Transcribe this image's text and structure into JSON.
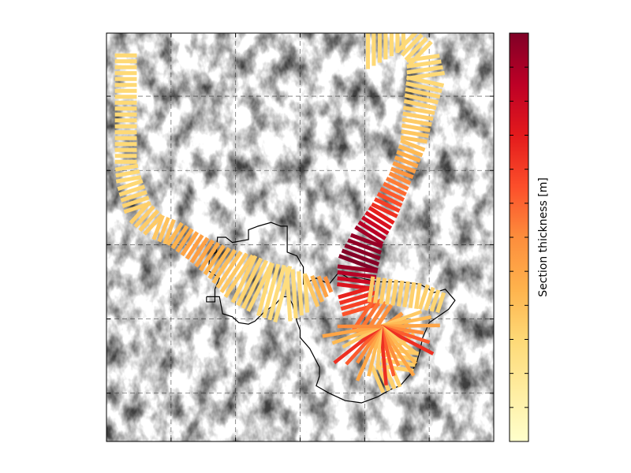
{
  "chart_data": {
    "type": "line",
    "title": "",
    "xlabel": "",
    "ylabel": "",
    "grid": true,
    "grid_style": "dashed",
    "xlim": [
      0,
      6
    ],
    "ylim": [
      0,
      5.5
    ],
    "x_gridlines": [
      1,
      2,
      3,
      4,
      5
    ],
    "y_gridlines": [
      0.65,
      1.65,
      2.65,
      3.65,
      4.65
    ],
    "colorbar": {
      "label": "Section thickness [m]",
      "colormap": "YlOrRd",
      "position": "right",
      "ticks": 12,
      "colors": [
        "#ffffcc",
        "#ffeda0",
        "#fed976",
        "#feb24c",
        "#fd8d3c",
        "#fc4e2a",
        "#e31a1c",
        "#bd0026",
        "#800026"
      ]
    },
    "background": "hillshade",
    "series": [
      {
        "kind": "flowline-sections",
        "line": [
          [
            0.3,
            5.2
          ],
          [
            0.3,
            4.6
          ],
          [
            0.3,
            4.1
          ],
          [
            0.3,
            3.75
          ],
          [
            0.35,
            3.5
          ],
          [
            0.5,
            3.1
          ],
          [
            0.75,
            2.9
          ],
          [
            1.05,
            2.8
          ],
          [
            1.4,
            2.6
          ],
          [
            1.75,
            2.4
          ],
          [
            2.1,
            2.2
          ],
          [
            2.45,
            2.05
          ],
          [
            2.75,
            1.98
          ],
          [
            3.1,
            2.0
          ],
          [
            3.45,
            2.12
          ]
        ],
        "thickness": [
          0.25,
          0.25,
          0.25,
          0.25,
          0.25,
          0.28,
          0.3,
          0.35,
          0.45,
          0.35,
          0.28,
          0.25,
          0.22,
          0.25,
          0.5
        ],
        "halfwidth": [
          0.17,
          0.17,
          0.17,
          0.17,
          0.2,
          0.22,
          0.2,
          0.2,
          0.22,
          0.28,
          0.4,
          0.42,
          0.45,
          0.3,
          0.12
        ]
      },
      {
        "kind": "flowline-sections",
        "line": [
          [
            4.05,
            5.45
          ],
          [
            4.6,
            5.45
          ],
          [
            4.9,
            5.2
          ],
          [
            4.95,
            4.9
          ],
          [
            4.85,
            4.5
          ],
          [
            4.75,
            4.0
          ],
          [
            4.55,
            3.55
          ],
          [
            4.3,
            3.1
          ],
          [
            4.05,
            2.75
          ],
          [
            3.9,
            2.4
          ],
          [
            3.85,
            2.05
          ],
          [
            3.95,
            1.75
          ],
          [
            4.3,
            1.55
          ],
          [
            4.55,
            1.25
          ],
          [
            4.5,
            0.95
          ],
          [
            4.15,
            0.82
          ]
        ],
        "thickness": [
          0.25,
          0.25,
          0.25,
          0.25,
          0.28,
          0.32,
          0.5,
          0.7,
          0.95,
          1.0,
          0.75,
          0.6,
          0.45,
          0.3,
          0.28,
          0.28
        ],
        "halfwidth": [
          0.5,
          0.2,
          0.25,
          0.3,
          0.25,
          0.2,
          0.18,
          0.22,
          0.25,
          0.32,
          0.28,
          0.3,
          0.35,
          0.3,
          0.25,
          0.22
        ]
      },
      {
        "kind": "flowline-sections",
        "line": [
          [
            4.1,
            2.05
          ],
          [
            4.5,
            2.0
          ],
          [
            4.9,
            1.95
          ],
          [
            5.25,
            1.85
          ]
        ],
        "thickness": [
          0.3,
          0.28,
          0.28,
          0.25
        ],
        "halfwidth": [
          0.2,
          0.2,
          0.2,
          0.15
        ]
      }
    ],
    "outline": [
      [
        1.55,
        1.95
      ],
      [
        1.55,
        1.88
      ],
      [
        1.68,
        1.88
      ],
      [
        1.68,
        2.05
      ],
      [
        1.75,
        2.2
      ],
      [
        1.58,
        2.3
      ],
      [
        1.6,
        2.5
      ],
      [
        1.7,
        2.55
      ],
      [
        1.72,
        2.75
      ],
      [
        1.85,
        2.75
      ],
      [
        1.95,
        2.68
      ],
      [
        2.2,
        2.72
      ],
      [
        2.2,
        2.85
      ],
      [
        2.35,
        2.9
      ],
      [
        2.55,
        2.95
      ],
      [
        2.7,
        2.9
      ],
      [
        2.8,
        2.9
      ],
      [
        2.8,
        2.55
      ],
      [
        2.95,
        2.5
      ],
      [
        3.0,
        2.42
      ],
      [
        3.05,
        2.35
      ],
      [
        3.05,
        2.12
      ],
      [
        3.25,
        2.2
      ],
      [
        3.45,
        2.12
      ],
      [
        3.6,
        2.28
      ],
      [
        3.75,
        2.2
      ],
      [
        3.95,
        2.2
      ],
      [
        4.2,
        2.15
      ],
      [
        4.55,
        2.15
      ],
      [
        4.85,
        2.12
      ],
      [
        5.0,
        2.05
      ],
      [
        5.05,
        2.0
      ],
      [
        5.25,
        2.05
      ],
      [
        5.4,
        1.9
      ],
      [
        5.3,
        1.78
      ],
      [
        5.2,
        1.72
      ],
      [
        5.0,
        1.6
      ],
      [
        4.9,
        1.4
      ],
      [
        4.85,
        1.2
      ],
      [
        4.8,
        1.05
      ],
      [
        4.7,
        0.9
      ],
      [
        4.55,
        0.75
      ],
      [
        4.4,
        0.7
      ],
      [
        4.2,
        0.6
      ],
      [
        3.95,
        0.52
      ],
      [
        3.7,
        0.55
      ],
      [
        3.45,
        0.65
      ],
      [
        3.25,
        0.75
      ],
      [
        3.3,
        0.88
      ],
      [
        3.3,
        1.0
      ],
      [
        3.15,
        1.25
      ],
      [
        3.0,
        1.4
      ],
      [
        3.0,
        1.5
      ],
      [
        2.95,
        1.62
      ],
      [
        2.92,
        1.72
      ],
      [
        2.88,
        1.85
      ],
      [
        2.82,
        1.95
      ],
      [
        2.72,
        1.95
      ],
      [
        2.62,
        1.85
      ],
      [
        2.45,
        1.75
      ],
      [
        2.3,
        1.62
      ],
      [
        2.2,
        1.58
      ],
      [
        2.05,
        1.6
      ],
      [
        1.95,
        1.68
      ],
      [
        1.8,
        1.72
      ],
      [
        1.75,
        1.95
      ],
      [
        1.55,
        1.95
      ]
    ],
    "fan": {
      "center": [
        4.25,
        1.55
      ],
      "thickness": [
        0.3,
        0.35,
        0.42,
        0.5,
        0.6,
        0.7
      ]
    }
  }
}
